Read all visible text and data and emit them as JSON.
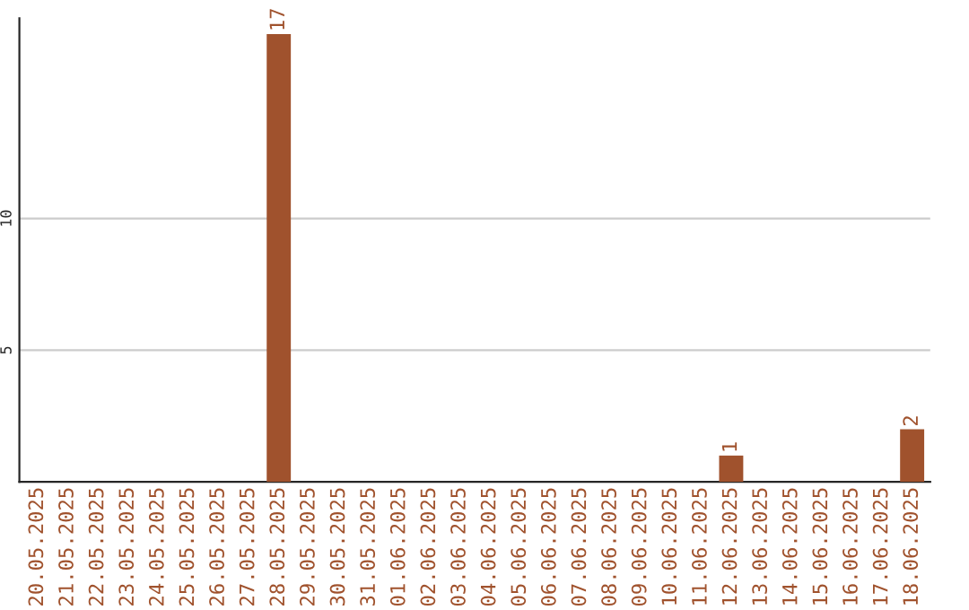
{
  "chart_data": {
    "type": "bar",
    "categories": [
      "20.05.2025",
      "21.05.2025",
      "22.05.2025",
      "23.05.2025",
      "24.05.2025",
      "25.05.2025",
      "26.05.2025",
      "27.05.2025",
      "28.05.2025",
      "29.05.2025",
      "30.05.2025",
      "31.05.2025",
      "01.06.2025",
      "02.06.2025",
      "03.06.2025",
      "04.06.2025",
      "05.06.2025",
      "06.06.2025",
      "07.06.2025",
      "08.06.2025",
      "09.06.2025",
      "10.06.2025",
      "11.06.2025",
      "12.06.2025",
      "13.06.2025",
      "14.06.2025",
      "15.06.2025",
      "16.06.2025",
      "17.06.2025",
      "18.06.2025"
    ],
    "values": [
      0,
      0,
      0,
      0,
      0,
      0,
      0,
      0,
      17,
      0,
      0,
      0,
      0,
      0,
      0,
      0,
      0,
      0,
      0,
      0,
      0,
      0,
      0,
      1,
      0,
      0,
      0,
      0,
      0,
      2
    ],
    "value_labels": [
      null,
      null,
      null,
      null,
      null,
      null,
      null,
      null,
      "17",
      null,
      null,
      null,
      null,
      null,
      null,
      null,
      null,
      null,
      null,
      null,
      null,
      null,
      null,
      "1",
      null,
      null,
      null,
      null,
      null,
      "2"
    ],
    "color": "#a0522d",
    "ylim": [
      0,
      17.6
    ],
    "yticks": [
      5,
      10
    ],
    "grid": "y"
  }
}
